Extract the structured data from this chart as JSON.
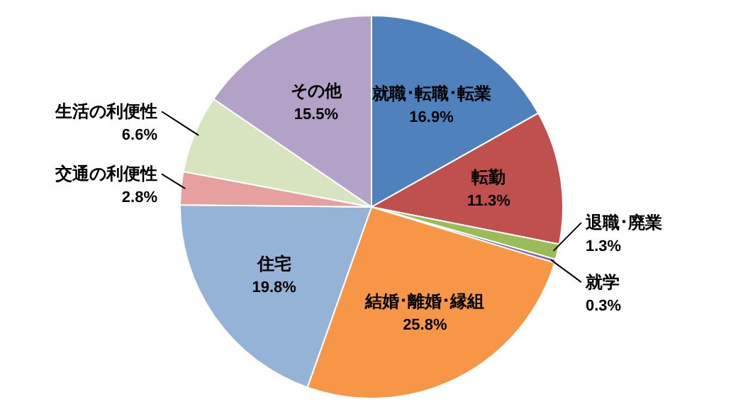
{
  "chart_data": {
    "type": "pie",
    "categories": [
      "就職･転職･転業",
      "転勤",
      "退職･廃業",
      "就学",
      "結婚･離婚･縁組",
      "住宅",
      "交通の利便性",
      "生活の利便性",
      "その他"
    ],
    "values": [
      16.9,
      11.3,
      1.3,
      0.3,
      25.8,
      19.8,
      2.8,
      6.6,
      15.5
    ],
    "value_labels": [
      "16.9%",
      "11.3%",
      "1.3%",
      "0.3%",
      "25.8%",
      "19.8%",
      "2.8%",
      "6.6%",
      "15.5%"
    ],
    "colors": [
      "#4f81bd",
      "#c0504d",
      "#9bbb59",
      "#8064a2",
      "#f79646",
      "#95b3d7",
      "#e6a09e",
      "#d7e4bd",
      "#b3a2c7"
    ]
  }
}
